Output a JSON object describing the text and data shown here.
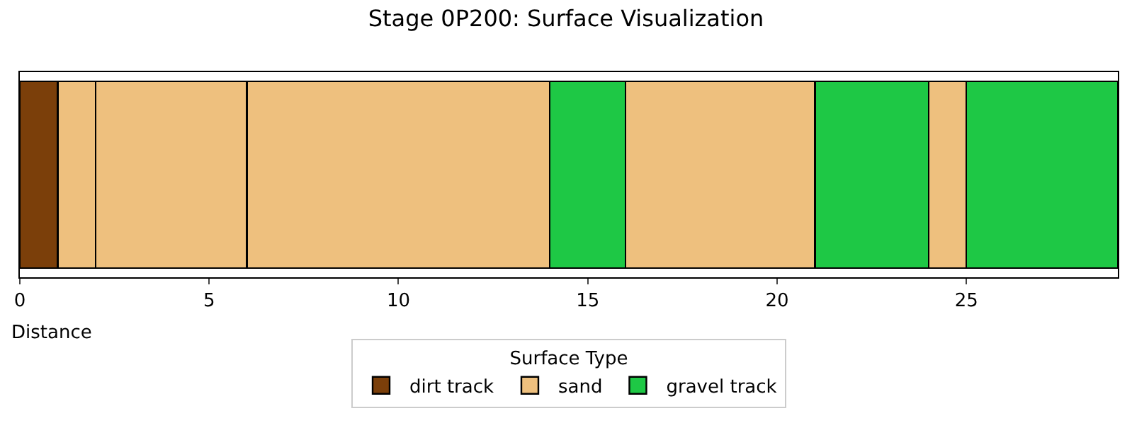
{
  "chart_data": {
    "type": "bar",
    "orientation": "horizontal",
    "stacked": true,
    "title": "Stage 0P200: Surface Visualization",
    "xlabel": "Distance",
    "legend_title": "Surface Type",
    "categories": [
      null
    ],
    "series": [
      {
        "name": "dirt track",
        "color": "#7b3f0a",
        "values": [
          1
        ]
      },
      {
        "name": "sand",
        "color": "#eec07e",
        "values": [
          1
        ]
      },
      {
        "color": "#eec07e",
        "values": [
          4
        ]
      },
      {
        "color": "#eec07e",
        "values": [
          8
        ]
      },
      {
        "name": "gravel track",
        "color": "#1ec845",
        "values": [
          2
        ]
      },
      {
        "color": "#eec07e",
        "values": [
          5
        ]
      },
      {
        "color": "#1ec845",
        "values": [
          3
        ]
      },
      {
        "color": "#eec07e",
        "values": [
          1
        ]
      },
      {
        "color": "#1ec845",
        "values": [
          4
        ]
      }
    ],
    "xlim": [
      0,
      29
    ],
    "xticks": [
      0,
      5,
      10,
      15,
      20,
      25
    ],
    "tick_labels": "x",
    "grid": false,
    "legend": "bottom"
  }
}
